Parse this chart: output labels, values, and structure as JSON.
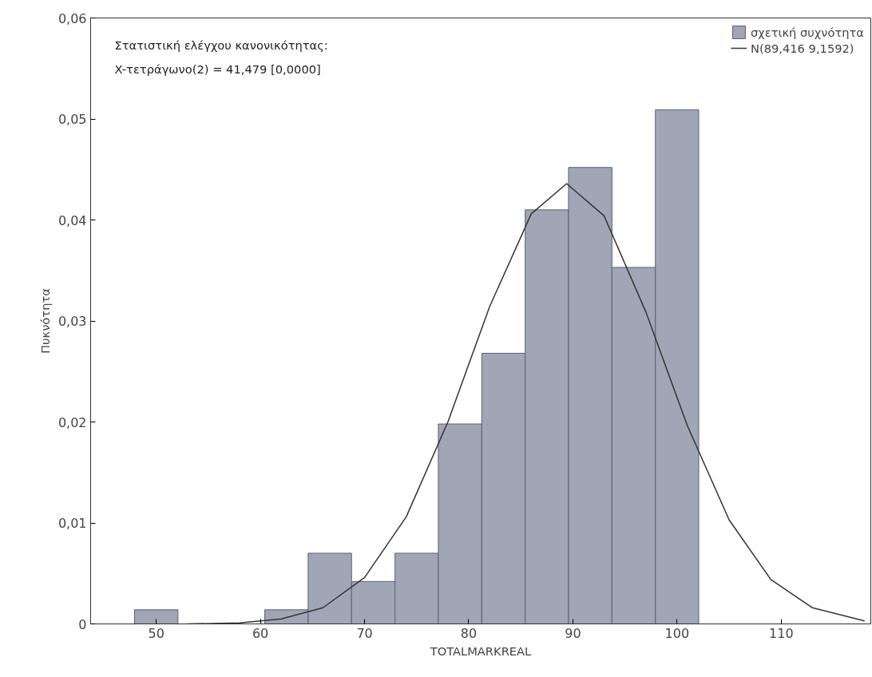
{
  "chart_data": {
    "type": "histogram",
    "xlabel": "TOTALMARKREAL",
    "ylabel": "Πυκνότητα",
    "annotations": [
      "Στατιστική ελέγχου κανονικότητας:",
      "X-τετράγωνο(2) = 41,479 [0,0000]"
    ],
    "bins": [
      47.92,
      52.08,
      56.25,
      60.42,
      64.58,
      68.75,
      72.92,
      77.08,
      81.25,
      85.42,
      89.58,
      93.75,
      97.92,
      102.08
    ],
    "series": [
      {
        "name": "σχετική συχνότητα",
        "color": "#a0a6b6",
        "values": [
          0.0014,
          0,
          0,
          0.0014,
          0.007,
          0.0042,
          0.007,
          0.0198,
          0.0268,
          0.041,
          0.0452,
          0.0353,
          0.0509
        ]
      },
      {
        "type": "line",
        "name": "N(89,416 9,1592)",
        "color": "#333333",
        "x": [
          53,
          58,
          62,
          66,
          70,
          74,
          78,
          82,
          86,
          89.4,
          93,
          97,
          101,
          105,
          109,
          113,
          118
        ],
        "values": [
          0.0,
          0.0001,
          0.0005,
          0.0016,
          0.0046,
          0.0106,
          0.02,
          0.0314,
          0.0406,
          0.0436,
          0.0404,
          0.0309,
          0.0196,
          0.0103,
          0.0044,
          0.0016,
          0.0003
        ]
      }
    ],
    "xlim": [
      43.7,
      118.6
    ],
    "ylim": [
      0,
      0.06
    ],
    "xticks": [
      50,
      60,
      70,
      80,
      90,
      100,
      110
    ],
    "yticks": [
      {
        "value": 0,
        "label": "0"
      },
      {
        "value": 0.01,
        "label": "0,01"
      },
      {
        "value": 0.02,
        "label": "0,02"
      },
      {
        "value": 0.03,
        "label": "0,03"
      },
      {
        "value": 0.04,
        "label": "0,04"
      },
      {
        "value": 0.05,
        "label": "0,05"
      },
      {
        "value": 0.06,
        "label": "0,06"
      }
    ],
    "grid": false,
    "legend": "top right"
  }
}
